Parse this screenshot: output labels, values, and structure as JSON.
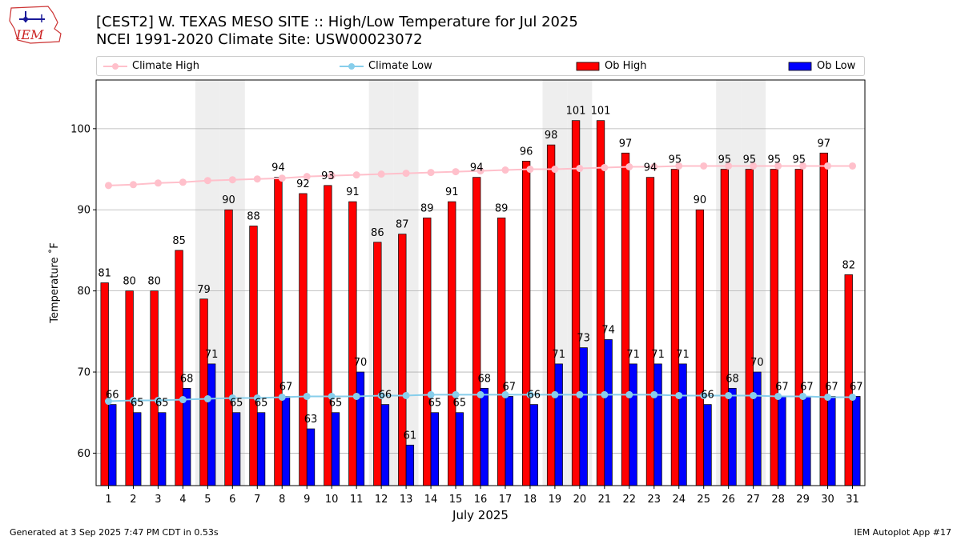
{
  "header": {
    "title_line1": "[CEST2] W. TEXAS MESO SITE :: High/Low Temperature for Jul 2025",
    "title_line2": "NCEI 1991-2020 Climate Site: USW00023072",
    "logo_text": "IEM"
  },
  "legend": {
    "climate_high": "Climate High",
    "climate_low": "Climate Low",
    "ob_high": "Ob High",
    "ob_low": "Ob Low"
  },
  "footer": {
    "generated": "Generated at 3 Sep 2025 7:47 PM CDT in 0.53s",
    "app": "IEM Autoplot App #17"
  },
  "colors": {
    "ob_high": "#ff0000",
    "ob_low": "#0000ff",
    "climate_high": "#ffc0cb",
    "climate_low": "#87ceeb",
    "weekend_shade": "#eeeeee"
  },
  "chart_data": {
    "type": "bar",
    "title": "[CEST2] W. TEXAS MESO SITE :: High/Low Temperature for Jul 2025",
    "xlabel": "July 2025",
    "ylabel": "Temperature ˚F",
    "ylim": [
      56,
      106
    ],
    "yticks": [
      60,
      70,
      80,
      90,
      100
    ],
    "grid": "horizontal",
    "legend_position": "top",
    "categories": [
      "1",
      "2",
      "3",
      "4",
      "5",
      "6",
      "7",
      "8",
      "9",
      "10",
      "11",
      "12",
      "13",
      "14",
      "15",
      "16",
      "17",
      "18",
      "19",
      "20",
      "21",
      "22",
      "23",
      "24",
      "25",
      "26",
      "27",
      "28",
      "29",
      "30",
      "31"
    ],
    "shaded_days": [
      5,
      6,
      12,
      13,
      19,
      20,
      26,
      27
    ],
    "series": [
      {
        "name": "Ob High",
        "kind": "bar",
        "values": [
          81,
          80,
          80,
          85,
          79,
          90,
          88,
          94,
          92,
          93,
          91,
          86,
          87,
          89,
          91,
          94,
          89,
          96,
          98,
          101,
          101,
          97,
          94,
          95,
          90,
          95,
          95,
          95,
          95,
          97,
          82
        ]
      },
      {
        "name": "Ob Low",
        "kind": "bar",
        "values": [
          66,
          65,
          65,
          68,
          71,
          65,
          65,
          67,
          63,
          65,
          70,
          66,
          61,
          65,
          65,
          68,
          67,
          66,
          71,
          73,
          74,
          71,
          71,
          71,
          66,
          68,
          70,
          67,
          67,
          67,
          67
        ]
      },
      {
        "name": "Climate High",
        "kind": "line",
        "values": [
          93.0,
          93.1,
          93.3,
          93.4,
          93.6,
          93.7,
          93.8,
          93.9,
          94.1,
          94.2,
          94.3,
          94.4,
          94.5,
          94.6,
          94.7,
          94.8,
          94.9,
          95.0,
          95.0,
          95.1,
          95.2,
          95.3,
          95.3,
          95.4,
          95.4,
          95.4,
          95.4,
          95.4,
          95.4,
          95.4,
          95.4
        ]
      },
      {
        "name": "Climate Low",
        "kind": "line",
        "values": [
          66.4,
          66.5,
          66.5,
          66.6,
          66.7,
          66.8,
          66.8,
          66.9,
          67.0,
          67.0,
          67.0,
          67.1,
          67.1,
          67.2,
          67.2,
          67.2,
          67.2,
          67.2,
          67.2,
          67.2,
          67.2,
          67.2,
          67.2,
          67.1,
          67.1,
          67.1,
          67.1,
          67.0,
          67.0,
          66.9,
          66.9
        ]
      }
    ]
  }
}
